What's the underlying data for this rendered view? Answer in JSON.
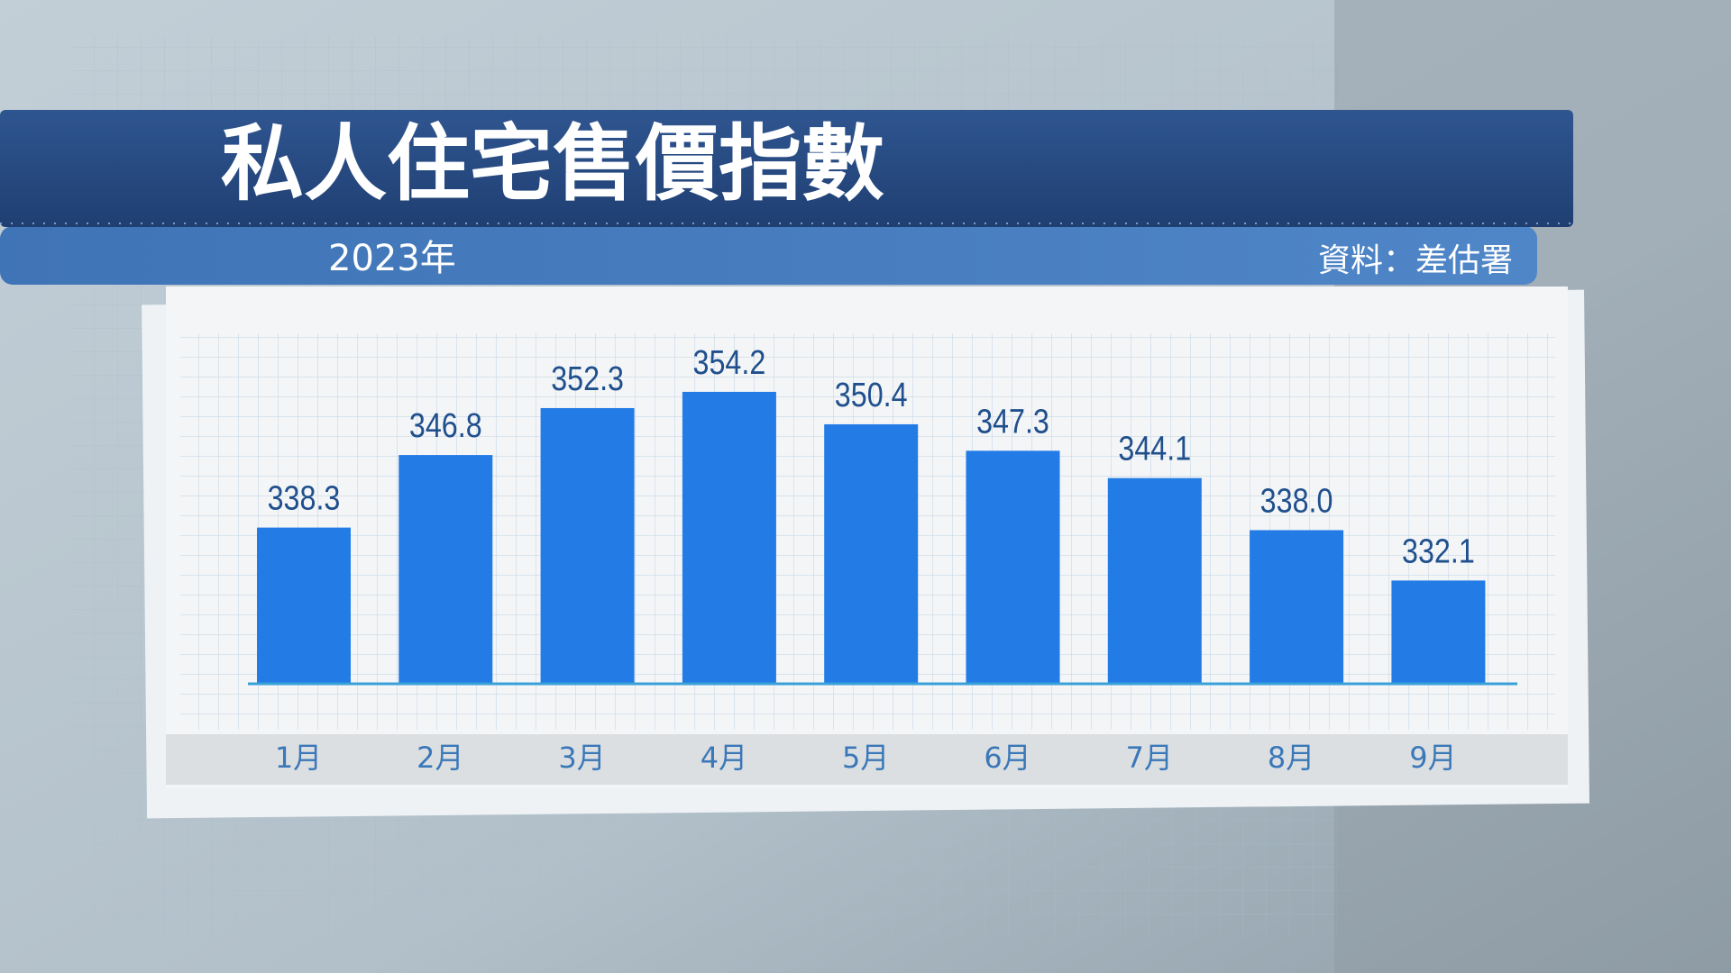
{
  "chart_data": {
    "type": "bar",
    "title": "私人住宅售價指數",
    "subtitle": "2023年",
    "source": "資料：差估署",
    "categories": [
      "1月",
      "2月",
      "3月",
      "4月",
      "5月",
      "6月",
      "7月",
      "8月",
      "9月"
    ],
    "values": [
      338.3,
      346.8,
      352.3,
      354.2,
      350.4,
      347.3,
      344.1,
      338.0,
      332.1
    ],
    "value_labels": [
      "338.3",
      "346.8",
      "352.3",
      "354.2",
      "350.4",
      "347.3",
      "344.1",
      "338.0",
      "332.1"
    ],
    "color": "#237be6",
    "ylim": [
      320,
      360
    ]
  }
}
